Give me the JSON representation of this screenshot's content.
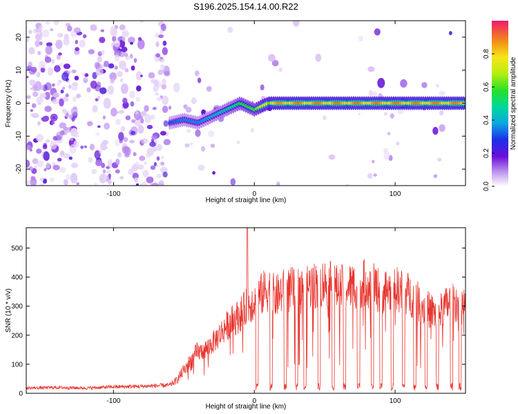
{
  "title": "S196.2025.154.14.00.R22",
  "colors": {
    "line": "#e8362f",
    "frame": "#000000",
    "spectrogram_low": "#cda8f5",
    "spectrogram_mid": "#7b1fe0",
    "spectrogram_peak": "#e8362f"
  },
  "chart_data": [
    {
      "type": "heatmap",
      "xlabel": "Height of straight line (km)",
      "ylabel": "Frequency (Hz)",
      "xlim": [
        -162,
        150
      ],
      "ylim": [
        -25,
        25
      ],
      "xticks": [
        -100,
        0,
        100
      ],
      "xtick_labels": [
        "-100",
        "0",
        "100"
      ],
      "yticks": [
        -20,
        -10,
        0,
        10,
        20
      ],
      "ytick_labels": [
        "-20",
        "-10",
        "0",
        "10",
        "20"
      ],
      "colorbar": {
        "label": "Normalized spectral amplitude",
        "range": [
          0,
          1
        ],
        "ticks": [
          0.0,
          0.2,
          0.4,
          0.6,
          0.8
        ],
        "tick_labels": [
          "0.0",
          "0.2",
          "0.4",
          "0.6",
          "0.8"
        ]
      },
      "ridge": {
        "x": [
          -60,
          -50,
          -40,
          -30,
          -20,
          -10,
          0,
          10,
          20,
          40,
          60,
          80,
          100,
          120,
          150
        ],
        "freq": [
          -6,
          -5,
          -6,
          -4,
          -2,
          0,
          -2,
          0,
          0,
          0,
          0,
          0,
          0,
          0,
          0
        ],
        "amplitude": [
          0.3,
          0.35,
          0.35,
          0.4,
          0.45,
          0.55,
          0.6,
          0.8,
          0.9,
          0.9,
          0.9,
          0.9,
          0.9,
          0.9,
          0.9
        ]
      }
    },
    {
      "type": "line",
      "xlabel": "Height of straight line (km)",
      "ylabel": "SNR (10 * v/v)",
      "xlim": [
        -162,
        150
      ],
      "ylim": [
        0,
        570
      ],
      "xticks": [
        -100,
        0,
        100
      ],
      "xtick_labels": [
        "-100",
        "0",
        "100"
      ],
      "yticks": [
        0,
        100,
        200,
        300,
        400,
        500
      ],
      "ytick_labels": [
        "0",
        "100",
        "200",
        "300",
        "400",
        "500"
      ],
      "x": [
        -162,
        -140,
        -120,
        -100,
        -80,
        -60,
        -55,
        -50,
        -45,
        -40,
        -35,
        -30,
        -25,
        -20,
        -15,
        -10,
        -5,
        0,
        5,
        10,
        15,
        20,
        30,
        40,
        50,
        60,
        70,
        80,
        90,
        100,
        110,
        120,
        130,
        140,
        150
      ],
      "y": [
        18,
        20,
        18,
        22,
        24,
        28,
        45,
        80,
        110,
        140,
        150,
        170,
        200,
        230,
        250,
        270,
        300,
        320,
        340,
        360,
        330,
        350,
        360,
        370,
        380,
        360,
        370,
        380,
        350,
        360,
        340,
        300,
        270,
        320,
        300
      ]
    }
  ]
}
